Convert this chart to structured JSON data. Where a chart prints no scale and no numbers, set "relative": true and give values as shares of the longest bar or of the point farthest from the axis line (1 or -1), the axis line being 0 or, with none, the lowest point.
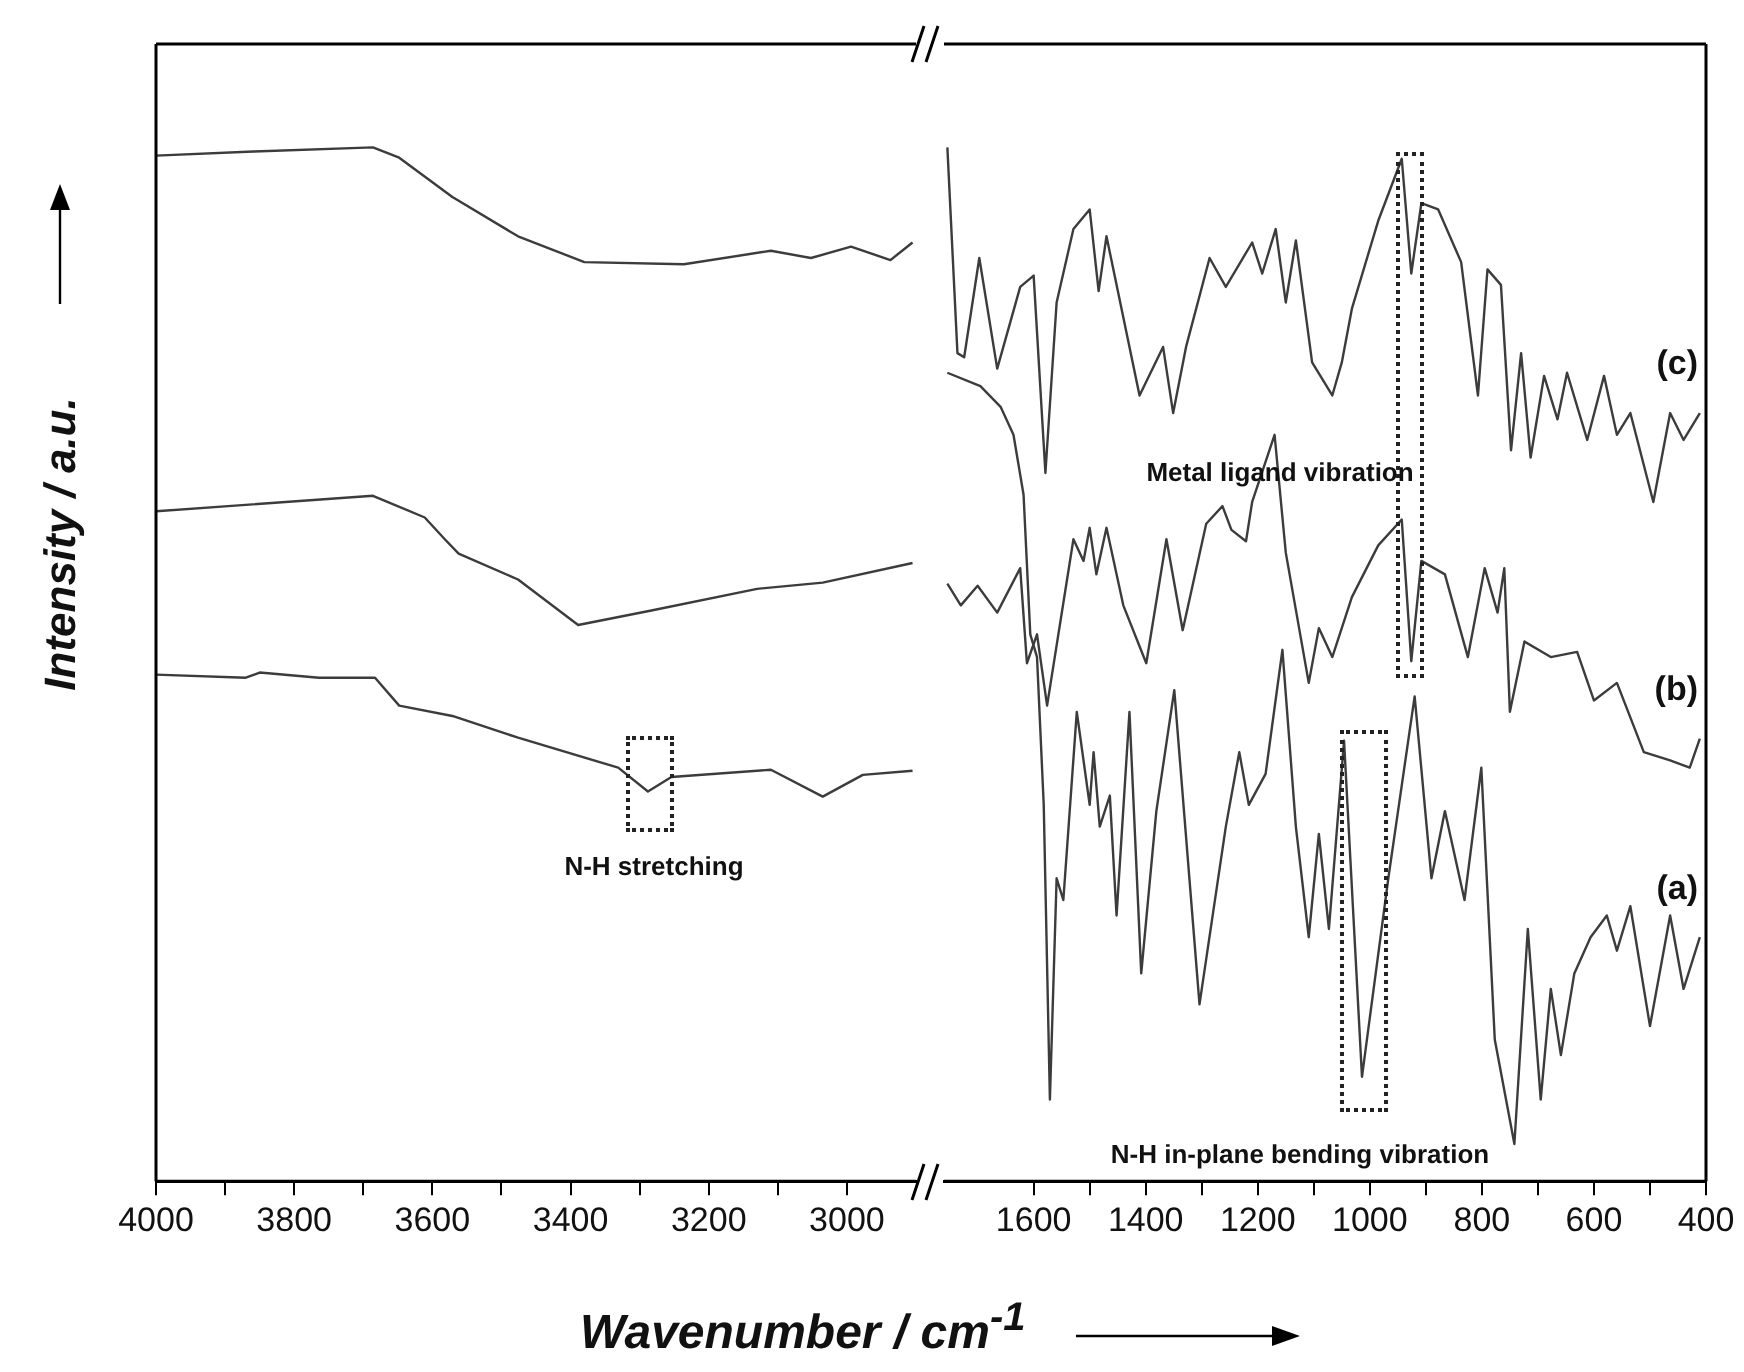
{
  "chart_data": [
    {
      "type": "line",
      "relative": true,
      "xlabel": "Wavenumber / cm$^{-1}$",
      "ylabel": "Intensity / a.u.",
      "xlim": [
        4000,
        2900
      ],
      "xticks": [
        4000,
        {
          "value": 3900,
          "label": null
        },
        3800,
        {
          "value": 3700,
          "label": null
        },
        3600,
        {
          "value": 3500,
          "label": null
        },
        3400,
        {
          "value": 3300,
          "label": null
        },
        3200,
        {
          "value": 3100,
          "label": null
        },
        3000
      ],
      "grid": false,
      "legend": false,
      "marker": "none",
      "line_style": "solid",
      "series": [
        {
          "color": "#3c3c3c",
          "x": [
            4000,
            3870,
            3850,
            3764,
            3683,
            3648,
            3571,
            3476,
            3331,
            3288,
            3254,
            3110,
            3035,
            2977,
            2905
          ],
          "values": [
            0.49,
            0.487,
            0.492,
            0.487,
            0.487,
            0.46,
            0.45,
            0.429,
            0.4,
            0.377,
            0.391,
            0.398,
            0.372,
            0.393,
            0.397
          ]
        },
        {
          "color": "#3c3c3c",
          "x": [
            4000,
            3686,
            3611,
            3582,
            3562,
            3476,
            3389,
            3283,
            3130,
            3035,
            2905
          ],
          "values": [
            0.648,
            0.663,
            0.642,
            0.621,
            0.607,
            0.582,
            0.538,
            0.552,
            0.573,
            0.579,
            0.598
          ]
        },
        {
          "color": "#3c3c3c",
          "x": [
            4000,
            3859,
            3686,
            3648,
            3571,
            3476,
            3380,
            3236,
            3110,
            3052,
            2994,
            2937,
            2905
          ],
          "values": [
            0.992,
            0.996,
            1.0,
            0.99,
            0.952,
            0.914,
            0.889,
            0.887,
            0.9,
            0.893,
            0.904,
            0.891,
            0.908
          ]
        }
      ],
      "annotations": [
        "N-H stretching"
      ]
    },
    {
      "type": "line",
      "relative": true,
      "xlim": [
        1760,
        400
      ],
      "xticks": [
        1600,
        {
          "value": 1500,
          "label": null
        },
        1400,
        {
          "value": 1300,
          "label": null
        },
        1200,
        {
          "value": 1100,
          "label": null
        },
        1000,
        {
          "value": 900,
          "label": null
        },
        800,
        {
          "value": 700,
          "label": null
        },
        600,
        {
          "value": 500,
          "label": null
        },
        400
      ],
      "grid": false,
      "legend": false,
      "marker": "none",
      "line_style": "solid",
      "series": [
        {
          "name": "(a)",
          "color": "#3c3c3c",
          "x": [
            1754,
            1695,
            1659,
            1636,
            1618,
            1606,
            1594,
            1582,
            1571,
            1559,
            1547,
            1523,
            1500,
            1493,
            1482,
            1464,
            1452,
            1429,
            1408,
            1381,
            1349,
            1304,
            1257,
            1233,
            1216,
            1186,
            1156,
            1132,
            1109,
            1091,
            1073,
            1046,
            1014,
            967,
            920,
            890,
            866,
            831,
            801,
            777,
            742,
            718,
            695,
            677,
            659,
            635,
            606,
            577,
            559,
            535,
            500,
            464,
            440,
            411
          ],
          "values": [
            0.782,
            0.769,
            0.749,
            0.722,
            0.664,
            0.529,
            0.507,
            0.364,
            0.079,
            0.293,
            0.272,
            0.454,
            0.364,
            0.415,
            0.343,
            0.373,
            0.257,
            0.454,
            0.201,
            0.358,
            0.475,
            0.171,
            0.343,
            0.415,
            0.364,
            0.394,
            0.514,
            0.343,
            0.236,
            0.336,
            0.244,
            0.426,
            0.101,
            0.293,
            0.469,
            0.293,
            0.358,
            0.272,
            0.4,
            0.137,
            0.036,
            0.244,
            0.079,
            0.186,
            0.122,
            0.201,
            0.236,
            0.257,
            0.223,
            0.266,
            0.15,
            0.257,
            0.186,
            0.236
          ]
        },
        {
          "name": "(b)",
          "color": "#3c3c3c",
          "x": [
            1754,
            1730,
            1700,
            1665,
            1624,
            1612,
            1594,
            1576,
            1529,
            1511,
            1500,
            1488,
            1470,
            1440,
            1399,
            1363,
            1334,
            1292,
            1263,
            1247,
            1221,
            1210,
            1170,
            1150,
            1109,
            1091,
            1067,
            1032,
            985,
            943,
            926,
            908,
            866,
            825,
            795,
            772,
            760,
            750,
            724,
            677,
            630,
            600,
            559,
            511,
            464,
            429,
            411
          ],
          "values": [
            0.578,
            0.557,
            0.576,
            0.55,
            0.593,
            0.501,
            0.529,
            0.46,
            0.621,
            0.6,
            0.632,
            0.587,
            0.632,
            0.557,
            0.501,
            0.621,
            0.533,
            0.636,
            0.653,
            0.63,
            0.619,
            0.657,
            0.722,
            0.608,
            0.482,
            0.535,
            0.507,
            0.565,
            0.615,
            0.64,
            0.503,
            0.6,
            0.587,
            0.507,
            0.593,
            0.55,
            0.593,
            0.454,
            0.522,
            0.507,
            0.512,
            0.465,
            0.482,
            0.415,
            0.407,
            0.4,
            0.428
          ]
        },
        {
          "name": "(c)",
          "color": "#3c3c3c",
          "x": [
            1754,
            1736,
            1724,
            1697,
            1665,
            1624,
            1600,
            1579,
            1559,
            1529,
            1500,
            1484,
            1470,
            1411,
            1369,
            1351,
            1328,
            1286,
            1257,
            1210,
            1192,
            1168,
            1150,
            1132,
            1103,
            1067,
            1050,
            1032,
            985,
            943,
            926,
            908,
            878,
            837,
            807,
            790,
            766,
            748,
            730,
            713,
            689,
            665,
            648,
            612,
            582,
            559,
            535,
            494,
            464,
            440,
            411
          ],
          "values": [
            1.0,
            0.801,
            0.797,
            0.893,
            0.786,
            0.865,
            0.876,
            0.685,
            0.85,
            0.921,
            0.94,
            0.861,
            0.914,
            0.76,
            0.807,
            0.743,
            0.807,
            0.893,
            0.865,
            0.908,
            0.878,
            0.921,
            0.85,
            0.91,
            0.792,
            0.76,
            0.792,
            0.844,
            0.929,
            0.989,
            0.878,
            0.946,
            0.94,
            0.889,
            0.76,
            0.882,
            0.867,
            0.707,
            0.801,
            0.7,
            0.779,
            0.737,
            0.782,
            0.717,
            0.779,
            0.722,
            0.743,
            0.657,
            0.743,
            0.717,
            0.743
          ]
        }
      ],
      "annotations": [
        "Metal ligand vibration",
        "N-H in-plane bending vibration"
      ]
    }
  ]
}
